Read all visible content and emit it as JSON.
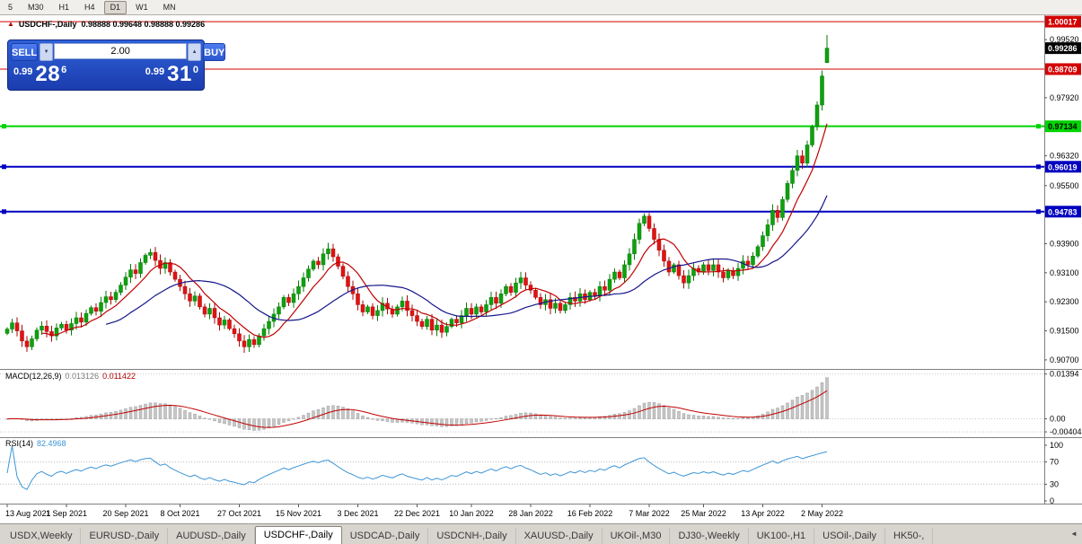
{
  "toolbar": {
    "timeframes": [
      "5",
      "M30",
      "H1",
      "H4",
      "D1",
      "W1",
      "MN"
    ],
    "active_timeframe": "D1"
  },
  "chart": {
    "title": "USDCHF-,Daily",
    "ohlc_text": "0.98888 0.99648 0.98888 0.99286",
    "current_price_label": "0.99286",
    "y_axis_ticks": [
      "0.99520",
      "0.97920",
      "0.97120",
      "0.96320",
      "0.95500",
      "0.93900",
      "0.93100",
      "0.92300",
      "0.91500",
      "0.90700"
    ],
    "hlines": [
      {
        "price": 1.00017,
        "label": "1.00017",
        "color": "#d40000",
        "width": 1,
        "text_color": "#ffffff"
      },
      {
        "price": 0.98709,
        "label": "0.98709",
        "color": "#d40000",
        "width": 1,
        "text_color": "#ffffff"
      },
      {
        "price": 0.97134,
        "label": "0.97134",
        "color": "#00d400",
        "width": 2,
        "text_color": "#000000"
      },
      {
        "price": 0.96019,
        "label": "0.96019",
        "color": "#0000c0",
        "width": 2,
        "text_color": "#ffffff"
      },
      {
        "price": 0.94783,
        "label": "0.94783",
        "color": "#0000c0",
        "width": 2,
        "text_color": "#ffffff"
      }
    ]
  },
  "trade_panel": {
    "sell_label": "SELL",
    "buy_label": "BUY",
    "volume": "2.00",
    "sell_price_small": "0.99",
    "sell_price_big": "28",
    "sell_price_sup": "6",
    "buy_price_small": "0.99",
    "buy_price_big": "31",
    "buy_price_sup": "0"
  },
  "macd": {
    "label": "MACD(12,26,9)",
    "value1": "0.013126",
    "value2": "0.011422",
    "axis": [
      "0.01394",
      "0.00",
      "-0.00404"
    ]
  },
  "rsi": {
    "label": "RSI(14)",
    "value": "82.4968",
    "axis": [
      "100",
      "70",
      "30",
      "0"
    ]
  },
  "tabs": {
    "items": [
      "USDX,Weekly",
      "EURUSD-,Daily",
      "AUDUSD-,Daily",
      "USDCHF-,Daily",
      "USDCAD-,Daily",
      "USDCNH-,Daily",
      "XAUUSD-,Daily",
      "UKOil-,M30",
      "DJ30-,Weekly",
      "UK100-,H1",
      "USOil-,Daily",
      "HK50-,"
    ],
    "active_index": 3
  },
  "icons": {
    "alert_triangle": "▲",
    "volume_down": "▼",
    "volume_up": "▲",
    "tab_scroll_left": "◄"
  },
  "colors": {
    "candle_up": "#0ea10e",
    "candle_up_border": "#067a06",
    "candle_down": "#e31212",
    "candle_down_border": "#a50b0b",
    "ma_fast": "#c00000",
    "ma_slow": "#16168c",
    "macd_bar": "#c6c6c6",
    "macd_bar_border": "#8f8f8f",
    "macd_signal": "#c00000",
    "rsi_line": "#3d95d6"
  },
  "chart_data": {
    "type": "candlestick",
    "symbol": "USDCHF",
    "timeframe": "Daily",
    "ylim": [
      0.905,
      1.0017
    ],
    "x_labels": [
      "13 Aug 2021",
      "1 Sep 2021",
      "20 Sep 2021",
      "8 Oct 2021",
      "27 Oct 2021",
      "15 Nov 2021",
      "3 Dec 2021",
      "22 Dec 2021",
      "10 Jan 2022",
      "28 Jan 2022",
      "16 Feb 2022",
      "7 Mar 2022",
      "25 Mar 2022",
      "13 Apr 2022",
      "2 May 2022"
    ],
    "last_candle": {
      "open": 0.98888,
      "high": 0.99648,
      "low": 0.98888,
      "close": 0.99286
    },
    "closes": [
      0.9155,
      0.9172,
      0.915,
      0.9122,
      0.9106,
      0.9128,
      0.9152,
      0.9163,
      0.9148,
      0.9136,
      0.9158,
      0.9168,
      0.9152,
      0.917,
      0.9186,
      0.9174,
      0.9198,
      0.9214,
      0.9204,
      0.9228,
      0.9244,
      0.9236,
      0.9256,
      0.9276,
      0.9298,
      0.9318,
      0.9308,
      0.9338,
      0.9358,
      0.9366,
      0.9344,
      0.9322,
      0.9338,
      0.9312,
      0.9292,
      0.9272,
      0.9252,
      0.9232,
      0.9246,
      0.9216,
      0.9196,
      0.9212,
      0.9186,
      0.9166,
      0.918,
      0.9156,
      0.9142,
      0.9122,
      0.9106,
      0.9126,
      0.9112,
      0.9136,
      0.9156,
      0.9176,
      0.9196,
      0.9216,
      0.9242,
      0.9228,
      0.9252,
      0.9272,
      0.9296,
      0.932,
      0.9342,
      0.9332,
      0.9362,
      0.9376,
      0.9354,
      0.9328,
      0.93,
      0.9272,
      0.9252,
      0.9222,
      0.9202,
      0.9216,
      0.9192,
      0.9206,
      0.9226,
      0.921,
      0.9196,
      0.9216,
      0.9232,
      0.9206,
      0.9192,
      0.9176,
      0.9162,
      0.9182,
      0.9152,
      0.9166,
      0.9146,
      0.9162,
      0.9182,
      0.9172,
      0.9192,
      0.9212,
      0.9196,
      0.9216,
      0.9202,
      0.9222,
      0.9242,
      0.9226,
      0.9252,
      0.9272,
      0.9256,
      0.9282,
      0.9296,
      0.9276,
      0.9262,
      0.9242,
      0.9222,
      0.9236,
      0.9212,
      0.9226,
      0.9206,
      0.9222,
      0.9242,
      0.9232,
      0.9252,
      0.9236,
      0.9256,
      0.9246,
      0.9272,
      0.9262,
      0.9292,
      0.9312,
      0.9296,
      0.9332,
      0.9362,
      0.9402,
      0.9446,
      0.9466,
      0.9432,
      0.9402,
      0.9372,
      0.9342,
      0.9312,
      0.9332,
      0.9302,
      0.9282,
      0.9302,
      0.9322,
      0.9312,
      0.9332,
      0.9316,
      0.9332,
      0.9312,
      0.9296,
      0.9316,
      0.9302,
      0.9322,
      0.9342,
      0.9332,
      0.9356,
      0.9382,
      0.9412,
      0.9442,
      0.9482,
      0.9462,
      0.9512,
      0.9556,
      0.9592,
      0.9632,
      0.9612,
      0.9662,
      0.9712,
      0.9772,
      0.9852,
      0.9929
    ]
  }
}
